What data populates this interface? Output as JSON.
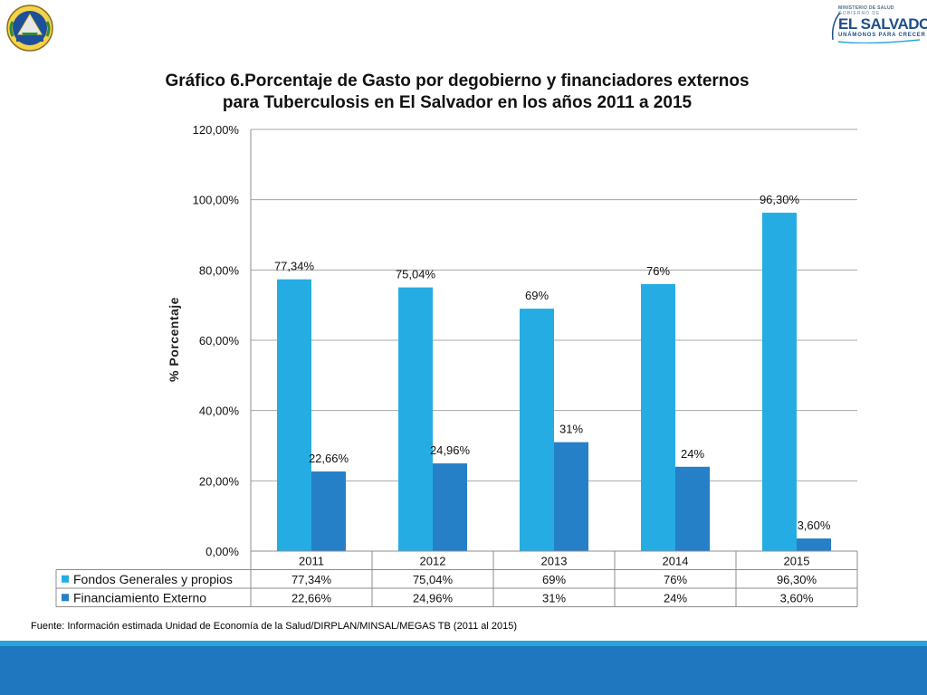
{
  "header": {
    "logo": {
      "ministry": "MINISTERIO DE SALUD",
      "gobierno": "GOBIERNO DE",
      "country": "EL SALVADOR",
      "motto": "UNÁMONOS PARA CRECER"
    }
  },
  "chart_data": {
    "type": "bar",
    "title_line1": "Gráfico 6.Porcentaje de Gasto por degobierno y financiadores externos",
    "title_line2": "para Tuberculosis en El Salvador en los años 2011 a 2015",
    "ylabel": "%  Porcentaje",
    "xlabel": "",
    "ylim": [
      0,
      120
    ],
    "yticks": [
      0,
      20,
      40,
      60,
      80,
      100,
      120
    ],
    "ytick_labels": [
      "0,00%",
      "20,00%",
      "40,00%",
      "60,00%",
      "80,00%",
      "100,00%",
      "120,00%"
    ],
    "grid": true,
    "categories": [
      "2011",
      "2012",
      "2013",
      "2014",
      "2015"
    ],
    "series": [
      {
        "name": "Fondos Generales y propios",
        "color": "#25ade3",
        "values": [
          77.34,
          75.04,
          69,
          76,
          96.3
        ],
        "labels": [
          "77,34%",
          "75,04%",
          "69%",
          "76%",
          "96,30%"
        ]
      },
      {
        "name": "Financiamiento Externo",
        "color": "#2580c8",
        "values": [
          22.66,
          24.96,
          31,
          24,
          3.6
        ],
        "labels": [
          "22,66%",
          "24,96%",
          "31%",
          "24%",
          "3,60%"
        ]
      }
    ],
    "legend": "data-table-below"
  },
  "source": "Fuente: Información estimada Unidad de Economía de la Salud/DIRPLAN/MINSAL/MEGAS TB  (2011 al 2015)",
  "colors": {
    "band_light": "#2aa3dc",
    "band_dark": "#1f78bf"
  }
}
